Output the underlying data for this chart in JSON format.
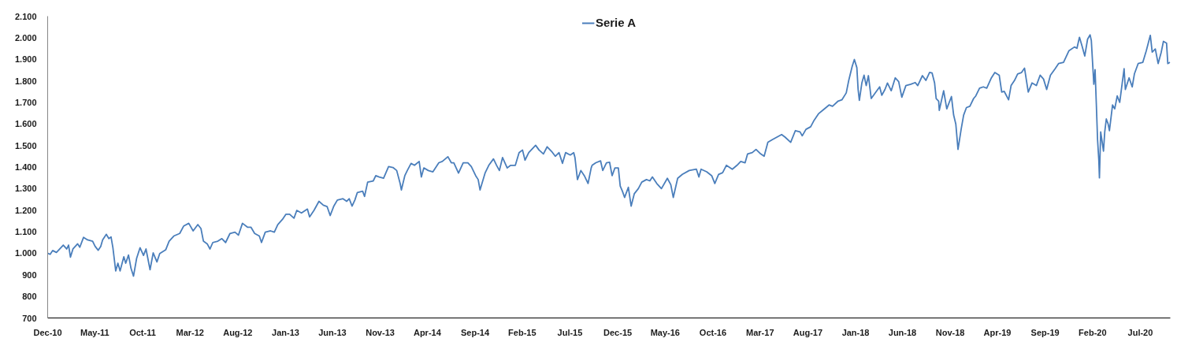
{
  "chart_data": {
    "type": "line",
    "x": [
      "2010-12-31",
      "2011-01-08",
      "2011-01-16",
      "2011-01-28",
      "2011-02-19",
      "2011-03-02",
      "2011-03-08",
      "2011-03-14",
      "2011-03-22",
      "2011-04-06",
      "2011-04-13",
      "2011-04-25",
      "2011-05-08",
      "2011-05-24",
      "2011-06-01",
      "2011-06-11",
      "2011-06-19",
      "2011-06-25",
      "2011-07-07",
      "2011-07-15",
      "2011-07-22",
      "2011-07-28",
      "2011-08-06",
      "2011-08-13",
      "2011-08-20",
      "2011-09-01",
      "2011-09-07",
      "2011-09-16",
      "2011-09-24",
      "2011-10-02",
      "2011-10-12",
      "2011-10-23",
      "2011-11-03",
      "2011-11-11",
      "2011-11-24",
      "2011-12-04",
      "2011-12-16",
      "2011-12-25",
      "2012-01-13",
      "2012-01-24",
      "2012-02-08",
      "2012-02-27",
      "2012-03-11",
      "2012-03-27",
      "2012-04-10",
      "2012-04-25",
      "2012-05-05",
      "2012-05-13",
      "2012-05-25",
      "2012-06-03",
      "2012-06-12",
      "2012-06-28",
      "2012-07-11",
      "2012-07-23",
      "2012-08-06",
      "2012-08-22",
      "2012-09-02",
      "2012-09-15",
      "2012-10-01",
      "2012-10-12",
      "2012-10-24",
      "2012-11-08",
      "2012-11-15",
      "2012-11-27",
      "2012-12-14",
      "2012-12-26",
      "2013-01-06",
      "2013-01-21",
      "2013-02-01",
      "2013-02-13",
      "2013-02-27",
      "2013-03-08",
      "2013-03-23",
      "2013-04-11",
      "2013-04-18",
      "2013-05-02",
      "2013-05-18",
      "2013-06-01",
      "2013-06-13",
      "2013-06-23",
      "2013-07-04",
      "2013-07-16",
      "2013-08-03",
      "2013-08-15",
      "2013-08-23",
      "2013-09-01",
      "2013-09-10",
      "2013-09-18",
      "2013-10-05",
      "2013-10-11",
      "2013-10-21",
      "2013-11-08",
      "2013-11-16",
      "2013-11-27",
      "2013-12-11",
      "2013-12-27",
      "2014-01-10",
      "2014-01-22",
      "2014-02-02",
      "2014-02-06",
      "2014-02-17",
      "2014-02-25",
      "2014-03-09",
      "2014-03-20",
      "2014-04-04",
      "2014-04-11",
      "2014-04-19",
      "2014-05-03",
      "2014-05-18",
      "2014-06-06",
      "2014-06-17",
      "2014-07-05",
      "2014-07-16",
      "2014-07-24",
      "2014-08-08",
      "2014-08-23",
      "2014-09-07",
      "2014-09-18",
      "2014-10-02",
      "2014-10-10",
      "2014-10-16",
      "2014-11-01",
      "2014-11-13",
      "2014-11-28",
      "2014-12-08",
      "2014-12-17",
      "2014-12-27",
      "2015-01-11",
      "2015-01-22",
      "2015-02-06",
      "2015-02-18",
      "2015-03-01",
      "2015-03-09",
      "2015-03-21",
      "2015-04-12",
      "2015-04-23",
      "2015-05-07",
      "2015-05-19",
      "2015-06-02",
      "2015-06-14",
      "2015-06-26",
      "2015-07-07",
      "2015-07-17",
      "2015-08-01",
      "2015-08-12",
      "2015-08-16",
      "2015-08-24",
      "2015-09-04",
      "2015-09-15",
      "2015-09-27",
      "2015-10-07",
      "2015-10-10",
      "2015-10-22",
      "2015-11-06",
      "2015-11-13",
      "2015-11-25",
      "2015-12-05",
      "2015-12-13",
      "2015-12-22",
      "2016-01-02",
      "2016-01-08",
      "2016-01-15",
      "2016-01-22",
      "2016-02-03",
      "2016-02-12",
      "2016-02-22",
      "2016-03-06",
      "2016-03-17",
      "2016-04-01",
      "2016-04-12",
      "2016-04-20",
      "2016-05-04",
      "2016-05-19",
      "2016-06-07",
      "2016-06-18",
      "2016-06-26",
      "2016-07-10",
      "2016-07-25",
      "2016-08-16",
      "2016-09-08",
      "2016-09-16",
      "2016-09-23",
      "2016-10-11",
      "2016-10-27",
      "2016-11-06",
      "2016-11-18",
      "2016-12-01",
      "2016-12-13",
      "2017-01-01",
      "2017-01-16",
      "2017-01-28",
      "2017-02-11",
      "2017-02-19",
      "2017-03-06",
      "2017-03-18",
      "2017-04-02",
      "2017-04-13",
      "2017-04-25",
      "2017-05-09",
      "2017-05-24",
      "2017-06-08",
      "2017-06-19",
      "2017-07-07",
      "2017-07-22",
      "2017-08-06",
      "2017-08-13",
      "2017-08-25",
      "2017-09-09",
      "2017-09-20",
      "2017-10-04",
      "2017-10-19",
      "2017-11-07",
      "2017-11-18",
      "2017-12-06",
      "2017-12-18",
      "2018-01-01",
      "2018-01-09",
      "2018-01-20",
      "2018-01-27",
      "2018-02-04",
      "2018-02-08",
      "2018-02-12",
      "2018-02-20",
      "2018-02-27",
      "2018-03-06",
      "2018-03-13",
      "2018-03-22",
      "2018-04-06",
      "2018-04-18",
      "2018-04-25",
      "2018-05-05",
      "2018-05-13",
      "2018-05-25",
      "2018-06-07",
      "2018-06-18",
      "2018-06-28",
      "2018-07-11",
      "2018-07-27",
      "2018-08-10",
      "2018-08-18",
      "2018-09-02",
      "2018-09-13",
      "2018-09-25",
      "2018-10-03",
      "2018-10-11",
      "2018-10-16",
      "2018-10-24",
      "2018-10-26",
      "2018-11-09",
      "2018-11-19",
      "2018-12-04",
      "2018-12-11",
      "2018-12-18",
      "2018-12-25",
      "2019-01-04",
      "2019-01-12",
      "2019-01-21",
      "2019-02-01",
      "2019-02-13",
      "2019-02-20",
      "2019-03-04",
      "2019-03-16",
      "2019-03-27",
      "2019-04-11",
      "2019-04-22",
      "2019-05-06",
      "2019-05-14",
      "2019-05-22",
      "2019-06-05",
      "2019-06-13",
      "2019-06-24",
      "2019-07-04",
      "2019-07-16",
      "2019-07-26",
      "2019-08-07",
      "2019-08-19",
      "2019-09-02",
      "2019-09-14",
      "2019-09-25",
      "2019-10-05",
      "2019-10-17",
      "2019-11-01",
      "2019-11-12",
      "2019-11-28",
      "2019-12-15",
      "2020-01-02",
      "2020-01-10",
      "2020-01-18",
      "2020-01-26",
      "2020-02-04",
      "2020-02-13",
      "2020-02-21",
      "2020-02-25",
      "2020-03-01",
      "2020-03-04",
      "2020-03-08",
      "2020-03-12",
      "2020-03-16",
      "2020-03-20",
      "2020-03-22",
      "2020-03-26",
      "2020-04-04",
      "2020-04-08",
      "2020-04-13",
      "2020-04-19",
      "2020-04-23",
      "2020-05-03",
      "2020-05-10",
      "2020-05-18",
      "2020-05-26",
      "2020-06-03",
      "2020-06-09",
      "2020-06-13",
      "2020-06-25",
      "2020-07-05",
      "2020-07-12",
      "2020-07-24",
      "2020-08-08",
      "2020-08-19",
      "2020-09-01",
      "2020-09-07",
      "2020-09-17",
      "2020-09-26",
      "2020-10-06",
      "2020-10-13",
      "2020-10-23",
      "2020-10-27",
      "2020-11-03"
    ],
    "series": [
      {
        "name": "Serie A",
        "color": "#4a7ebb",
        "values": [
          1000,
          995,
          1013,
          1004,
          1038,
          1020,
          1038,
          982,
          1020,
          1044,
          1028,
          1074,
          1062,
          1056,
          1032,
          1014,
          1032,
          1062,
          1088,
          1068,
          1076,
          1026,
          918,
          954,
          918,
          984,
          954,
          992,
          930,
          894,
          977,
          1026,
          990,
          1020,
          924,
          1002,
          960,
          999,
          1016,
          1056,
          1080,
          1092,
          1127,
          1139,
          1104,
          1133,
          1115,
          1056,
          1044,
          1020,
          1050,
          1056,
          1068,
          1050,
          1092,
          1098,
          1084,
          1139,
          1121,
          1121,
          1092,
          1080,
          1050,
          1098,
          1104,
          1098,
          1133,
          1157,
          1181,
          1181,
          1163,
          1199,
          1187,
          1205,
          1169,
          1199,
          1241,
          1223,
          1217,
          1175,
          1217,
          1247,
          1253,
          1241,
          1253,
          1219,
          1247,
          1282,
          1288,
          1264,
          1330,
          1336,
          1360,
          1354,
          1348,
          1402,
          1398,
          1384,
          1324,
          1294,
          1360,
          1384,
          1417,
          1408,
          1426,
          1354,
          1396,
          1384,
          1378,
          1420,
          1426,
          1448,
          1420,
          1420,
          1372,
          1420,
          1420,
          1402,
          1360,
          1342,
          1294,
          1372,
          1408,
          1438,
          1408,
          1384,
          1444,
          1396,
          1408,
          1408,
          1467,
          1479,
          1432,
          1467,
          1501,
          1479,
          1461,
          1494,
          1473,
          1450,
          1467,
          1417,
          1467,
          1456,
          1467,
          1444,
          1342,
          1384,
          1360,
          1324,
          1396,
          1408,
          1420,
          1429,
          1384,
          1420,
          1422,
          1360,
          1396,
          1396,
          1312,
          1288,
          1259,
          1306,
          1219,
          1276,
          1300,
          1330,
          1342,
          1336,
          1354,
          1324,
          1300,
          1348,
          1318,
          1259,
          1348,
          1366,
          1384,
          1390,
          1354,
          1390,
          1378,
          1360,
          1324,
          1366,
          1374,
          1408,
          1390,
          1408,
          1426,
          1420,
          1461,
          1467,
          1482,
          1461,
          1450,
          1515,
          1527,
          1539,
          1551,
          1539,
          1515,
          1569,
          1563,
          1545,
          1575,
          1587,
          1617,
          1647,
          1665,
          1688,
          1682,
          1706,
          1712,
          1744,
          1802,
          1867,
          1899,
          1861,
          1760,
          1709,
          1790,
          1826,
          1778,
          1824,
          1718,
          1748,
          1772,
          1733,
          1760,
          1790,
          1754,
          1814,
          1796,
          1724,
          1778,
          1784,
          1792,
          1778,
          1824,
          1802,
          1839,
          1836,
          1790,
          1718,
          1706,
          1663,
          1754,
          1670,
          1727,
          1641,
          1599,
          1482,
          1575,
          1641,
          1676,
          1682,
          1718,
          1730,
          1766,
          1772,
          1766,
          1814,
          1839,
          1826,
          1748,
          1751,
          1712,
          1778,
          1802,
          1832,
          1838,
          1859,
          1748,
          1790,
          1778,
          1826,
          1808,
          1760,
          1826,
          1856,
          1880,
          1886,
          1939,
          1957,
          1951,
          2002,
          1963,
          1915,
          1993,
          2013,
          1987,
          1861,
          1784,
          1852,
          1694,
          1527,
          1432,
          1350,
          1563,
          1474,
          1563,
          1623,
          1599,
          1569,
          1688,
          1670,
          1730,
          1700,
          1790,
          1856,
          1760,
          1814,
          1772,
          1832,
          1880,
          1886,
          1939,
          2011,
          1933,
          1948,
          1880,
          1933,
          1983,
          1975,
          1880,
          1886
        ]
      }
    ],
    "xlim": [
      "2010-12-31",
      "2020-11-04"
    ],
    "xticks": [
      {
        "value": "2010-12-31",
        "label": "Dec-10"
      },
      {
        "value": "2011-05-31",
        "label": "May-11"
      },
      {
        "value": "2011-10-31",
        "label": "Oct-11"
      },
      {
        "value": "2012-03-31",
        "label": "Mar-12"
      },
      {
        "value": "2012-08-31",
        "label": "Aug-12"
      },
      {
        "value": "2013-01-31",
        "label": "Jan-13"
      },
      {
        "value": "2013-06-30",
        "label": "Jun-13"
      },
      {
        "value": "2013-11-30",
        "label": "Nov-13"
      },
      {
        "value": "2014-04-30",
        "label": "Apr-14"
      },
      {
        "value": "2014-09-30",
        "label": "Sep-14"
      },
      {
        "value": "2015-02-28",
        "label": "Feb-15"
      },
      {
        "value": "2015-07-31",
        "label": "Jul-15"
      },
      {
        "value": "2015-12-31",
        "label": "Dec-15"
      },
      {
        "value": "2016-05-31",
        "label": "May-16"
      },
      {
        "value": "2016-10-31",
        "label": "Oct-16"
      },
      {
        "value": "2017-03-31",
        "label": "Mar-17"
      },
      {
        "value": "2017-08-31",
        "label": "Aug-17"
      },
      {
        "value": "2018-01-31",
        "label": "Jan-18"
      },
      {
        "value": "2018-06-30",
        "label": "Jun-18"
      },
      {
        "value": "2018-11-30",
        "label": "Nov-18"
      },
      {
        "value": "2019-04-30",
        "label": "Apr-19"
      },
      {
        "value": "2019-09-30",
        "label": "Sep-19"
      },
      {
        "value": "2020-02-29",
        "label": "Feb-20"
      },
      {
        "value": "2020-07-31",
        "label": "Jul-20"
      }
    ],
    "ylim": [
      700,
      2100
    ],
    "yticks": [
      700,
      800,
      900,
      {
        "value": 1000,
        "label": "1.000"
      },
      {
        "value": 1100,
        "label": "1.100"
      },
      {
        "value": 1200,
        "label": "1.200"
      },
      {
        "value": 1300,
        "label": "1.300"
      },
      {
        "value": 1400,
        "label": "1.400"
      },
      {
        "value": 1500,
        "label": "1.500"
      },
      {
        "value": 1600,
        "label": "1.600"
      },
      {
        "value": 1700,
        "label": "1.700"
      },
      {
        "value": 1800,
        "label": "1.800"
      },
      {
        "value": 1900,
        "label": "1.900"
      },
      {
        "value": 2000,
        "label": "2.000"
      },
      {
        "value": 2100,
        "label": "2.100"
      }
    ],
    "grid": false,
    "legend": "top",
    "line_style": "solid"
  }
}
